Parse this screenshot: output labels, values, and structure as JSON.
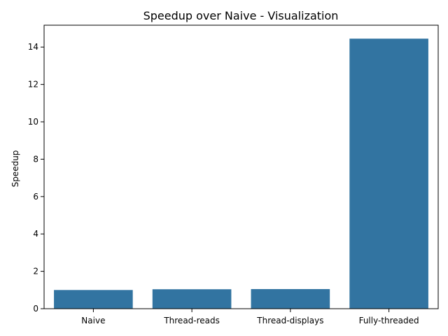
{
  "chart_data": {
    "type": "bar",
    "title": "Speedup over Naive - Visualization",
    "xlabel": "",
    "ylabel": "Speedup",
    "categories": [
      "Naive",
      "Thread-reads",
      "Thread-displays",
      "Fully-threaded"
    ],
    "values": [
      1.0,
      1.04,
      1.05,
      14.45
    ],
    "ylim": [
      0,
      15.17
    ],
    "yticks": [
      0,
      2,
      4,
      6,
      8,
      10,
      12,
      14
    ],
    "bar_color": "#3274a1",
    "grid": false,
    "legend": "none"
  }
}
